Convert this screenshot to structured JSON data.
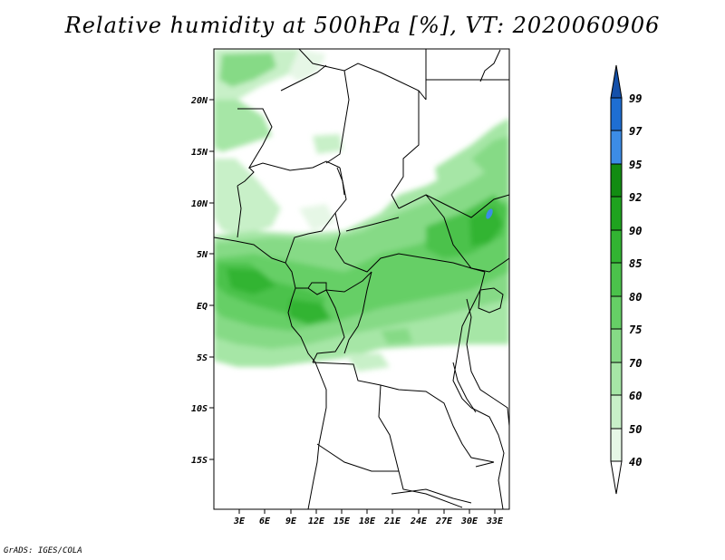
{
  "title": "Relative humidity at 500hPa [%], VT: 2020060906",
  "credit": "GrADS: IGES/COLA",
  "map": {
    "lat_labels": [
      "20N",
      "15N",
      "10N",
      "5N",
      "EQ",
      "5S",
      "10S",
      "15S"
    ],
    "lon_labels": [
      "3E",
      "6E",
      "9E",
      "12E",
      "15E",
      "18E",
      "21E",
      "24E",
      "27E",
      "30E",
      "33E"
    ]
  },
  "colorbar": {
    "levels": [
      "99",
      "97",
      "95",
      "92",
      "90",
      "85",
      "80",
      "75",
      "70",
      "60",
      "50",
      "40"
    ],
    "colors": {
      "lt40": "#ffffff",
      "40_50": "#e6f7e6",
      "50_60": "#c8f0c8",
      "60_70": "#a6e6a6",
      "70_75": "#86da86",
      "75_80": "#66cf66",
      "80_85": "#4bc24b",
      "85_90": "#32b432",
      "90_92": "#1fa31f",
      "92_95": "#128c12",
      "95_97": "#3c8ce6",
      "97_99": "#1e6ed2",
      "gt99": "#1450aa"
    }
  }
}
